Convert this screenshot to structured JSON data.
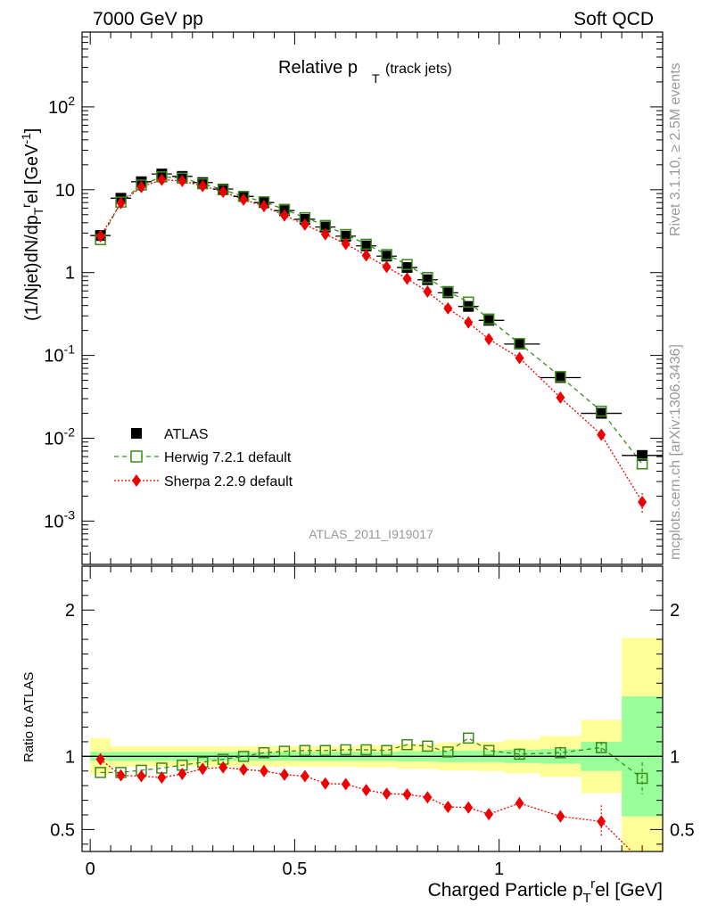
{
  "header": {
    "left": "7000 GeV pp",
    "right": "Soft QCD"
  },
  "plot_title": {
    "main": "Relative p",
    "sub": "T",
    "note": "(track jets)"
  },
  "analysis_id": "ATLAS_2011_I919017",
  "side_labels": {
    "top": "Rivet 3.1.10, ≥ 2.5M events",
    "bottom": "mcplots.cern.ch [arXiv:1306.3436]"
  },
  "colors": {
    "data": "#000000",
    "herwig": "#3a8a1a",
    "sherpa": "#ee0000",
    "band_inner": "#99ff99",
    "band_outer": "#ffff99"
  },
  "chart_data": [
    {
      "type": "scatter",
      "panel": "main",
      "ylabel": "(1/Njet)dN/dp_T^rel [GeV^-1]",
      "yscale": "log",
      "ylim": [
        0.0003,
        800
      ],
      "xlim": [
        -0.02,
        1.4
      ],
      "y_ticks": [
        "10^-3",
        "10^-2",
        "10^-1",
        "1",
        "10",
        "10^2"
      ],
      "legend_position": "lower-left",
      "x": [
        0.025,
        0.075,
        0.125,
        0.175,
        0.225,
        0.275,
        0.325,
        0.375,
        0.425,
        0.475,
        0.525,
        0.575,
        0.625,
        0.675,
        0.725,
        0.775,
        0.825,
        0.875,
        0.925,
        0.975,
        1.05,
        1.15,
        1.25,
        1.35
      ],
      "series": [
        {
          "name": "ATLAS",
          "marker": "square",
          "values": [
            2.8,
            7.9,
            12.5,
            15.5,
            14.5,
            12.2,
            10.2,
            8.3,
            7.0,
            5.6,
            4.4,
            3.55,
            2.75,
            2.1,
            1.58,
            1.15,
            0.82,
            0.57,
            0.39,
            0.265,
            0.137,
            0.054,
            0.02,
            0.0062
          ]
        },
        {
          "name": "Herwig 7.2.1 default",
          "marker": "open-square",
          "line": "dashed",
          "values": [
            2.5,
            7.1,
            11.4,
            14.3,
            13.8,
            11.8,
            10.0,
            8.3,
            7.15,
            5.8,
            4.6,
            3.7,
            2.88,
            2.2,
            1.65,
            1.25,
            0.87,
            0.59,
            0.44,
            0.275,
            0.139,
            0.0555,
            0.0212,
            0.0049
          ]
        },
        {
          "name": "Sherpa 2.2.9 default",
          "marker": "diamond",
          "line": "dotted",
          "values": [
            2.75,
            6.9,
            10.8,
            13.2,
            12.8,
            11.1,
            9.45,
            7.6,
            6.35,
            4.9,
            3.8,
            2.9,
            2.22,
            1.61,
            1.17,
            0.845,
            0.59,
            0.37,
            0.25,
            0.157,
            0.093,
            0.031,
            0.011,
            0.0017
          ]
        }
      ]
    },
    {
      "type": "scatter",
      "panel": "ratio",
      "ylabel": "Ratio to ATLAS",
      "xlabel": "Charged Particle p_T^rel [GeV]",
      "ylim": [
        0.35,
        2.3
      ],
      "xlim": [
        -0.02,
        1.4
      ],
      "y_ticks": [
        0.5,
        1,
        2
      ],
      "x_ticks": [
        0,
        0.5,
        1
      ],
      "x": [
        0.025,
        0.075,
        0.125,
        0.175,
        0.225,
        0.275,
        0.325,
        0.375,
        0.425,
        0.475,
        0.525,
        0.575,
        0.625,
        0.675,
        0.725,
        0.775,
        0.825,
        0.875,
        0.925,
        0.975,
        1.05,
        1.15,
        1.25,
        1.35
      ],
      "series": [
        {
          "name": "Herwig 7.2.1 default",
          "values": [
            0.89,
            0.89,
            0.905,
            0.92,
            0.94,
            0.96,
            0.98,
            1.0,
            1.025,
            1.035,
            1.04,
            1.04,
            1.045,
            1.045,
            1.04,
            1.08,
            1.07,
            1.03,
            1.125,
            1.04,
            1.015,
            1.025,
            1.06,
            0.85
          ]
        },
        {
          "name": "Sherpa 2.2.9 default",
          "values": [
            0.98,
            0.87,
            0.865,
            0.855,
            0.88,
            0.915,
            0.925,
            0.91,
            0.9,
            0.875,
            0.865,
            0.815,
            0.81,
            0.77,
            0.745,
            0.74,
            0.72,
            0.655,
            0.65,
            0.605,
            0.68,
            0.59,
            0.555,
            0.28
          ]
        }
      ],
      "band_inner_halfwidth": [
        0.03,
        0.03,
        0.03,
        0.03,
        0.03,
        0.03,
        0.03,
        0.03,
        0.03,
        0.03,
        0.03,
        0.03,
        0.03,
        0.03,
        0.03,
        0.035,
        0.035,
        0.04,
        0.04,
        0.04,
        0.045,
        0.05,
        0.1,
        0.41
      ],
      "band_outer_halfwidth": [
        0.095,
        0.04,
        0.04,
        0.04,
        0.04,
        0.04,
        0.04,
        0.04,
        0.04,
        0.04,
        0.04,
        0.04,
        0.04,
        0.045,
        0.045,
        0.05,
        0.05,
        0.055,
        0.055,
        0.06,
        0.07,
        0.09,
        0.15,
        0.4
      ]
    }
  ],
  "legend": {
    "items": [
      {
        "label": "ATLAS"
      },
      {
        "label": "Herwig 7.2.1 default"
      },
      {
        "label": "Sherpa 2.2.9 default"
      }
    ]
  }
}
